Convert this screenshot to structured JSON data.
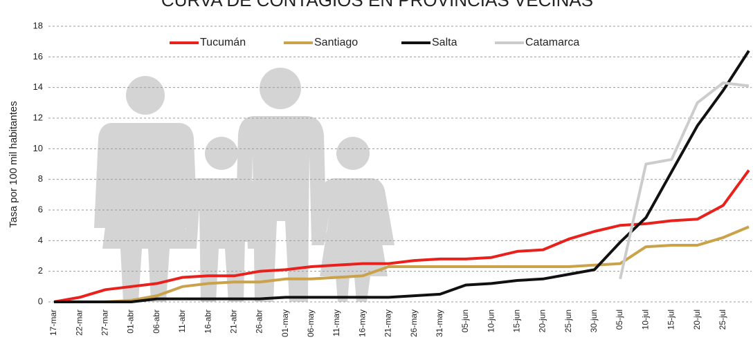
{
  "chart_data": {
    "type": "line",
    "title": "CURVA DE CONTAGIOS EN PROVINCIAS VECINAS",
    "y_label": "Tasa por 100 mil habitantes",
    "categories": [
      "17-mar",
      "22-mar",
      "27-mar",
      "01-abr",
      "06-abr",
      "11-abr",
      "16-abr",
      "21-abr",
      "26-abr",
      "01-may",
      "06-may",
      "11-may",
      "16-may",
      "21-may",
      "26-may",
      "31-may",
      "05-jun",
      "10-jun",
      "15-jun",
      "20-jun",
      "25-jun",
      "30-jun",
      "05-jul",
      "10-jul",
      "15-jul",
      "20-jul",
      "25-jul",
      null
    ],
    "series": [
      {
        "name": "Tucumán",
        "color": "#e8211d",
        "values": [
          0,
          0.3,
          0.8,
          1.0,
          1.2,
          1.6,
          1.7,
          1.7,
          2.0,
          2.1,
          2.3,
          2.4,
          2.5,
          2.5,
          2.7,
          2.8,
          2.8,
          2.9,
          3.3,
          3.4,
          4.1,
          4.6,
          5.0,
          5.1,
          5.3,
          5.4,
          6.3,
          8.6
        ]
      },
      {
        "name": "Santiago",
        "color": "#c9a24a",
        "values": [
          0,
          0,
          0,
          0.1,
          0.4,
          1.0,
          1.2,
          1.3,
          1.3,
          1.5,
          1.5,
          1.6,
          1.7,
          2.3,
          2.3,
          2.3,
          2.3,
          2.3,
          2.3,
          2.3,
          2.3,
          2.4,
          2.5,
          3.6,
          3.7,
          3.7,
          4.2,
          4.9
        ]
      },
      {
        "name": "Salta",
        "color": "#111111",
        "values": [
          0,
          0,
          0,
          0,
          0.2,
          0.2,
          0.2,
          0.2,
          0.2,
          0.3,
          0.3,
          0.3,
          0.3,
          0.3,
          0.4,
          0.5,
          1.1,
          1.2,
          1.4,
          1.5,
          1.8,
          2.1,
          3.9,
          5.5,
          8.5,
          11.5,
          13.8,
          16.4
        ]
      },
      {
        "name": "Catamarca",
        "color": "#cccccc",
        "values": [
          null,
          null,
          null,
          null,
          null,
          null,
          null,
          null,
          null,
          null,
          null,
          null,
          null,
          null,
          null,
          null,
          null,
          null,
          null,
          null,
          null,
          null,
          1.5,
          9.0,
          9.3,
          13.0,
          14.3,
          14.1
        ]
      }
    ],
    "ylim": [
      0,
      18
    ],
    "yticks": [
      0,
      2,
      4,
      6,
      8,
      10,
      12,
      14,
      16,
      18
    ],
    "grid": true
  }
}
